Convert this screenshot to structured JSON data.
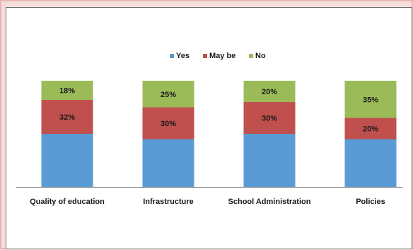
{
  "chart_data": {
    "type": "bar",
    "stacked": true,
    "categories": [
      "Quality of education",
      "Infrastructure",
      "School Administration",
      "Policies"
    ],
    "series": [
      {
        "name": "Yes",
        "color": "#5b9bd5",
        "values": [
          50,
          45,
          50,
          45
        ],
        "labels": [
          "",
          "",
          "",
          ""
        ]
      },
      {
        "name": "May be",
        "color": "#c0504d",
        "values": [
          32,
          30,
          30,
          20
        ],
        "labels": [
          "32%",
          "30%",
          "30%",
          "20%"
        ]
      },
      {
        "name": "No",
        "color": "#9bbb59",
        "values": [
          18,
          25,
          20,
          35
        ],
        "labels": [
          "18%",
          "25%",
          "20%",
          "35%"
        ]
      }
    ],
    "ylim": [
      0,
      100
    ],
    "legend": "top-center",
    "grid": false,
    "title": "",
    "xlabel": "",
    "ylabel": ""
  }
}
